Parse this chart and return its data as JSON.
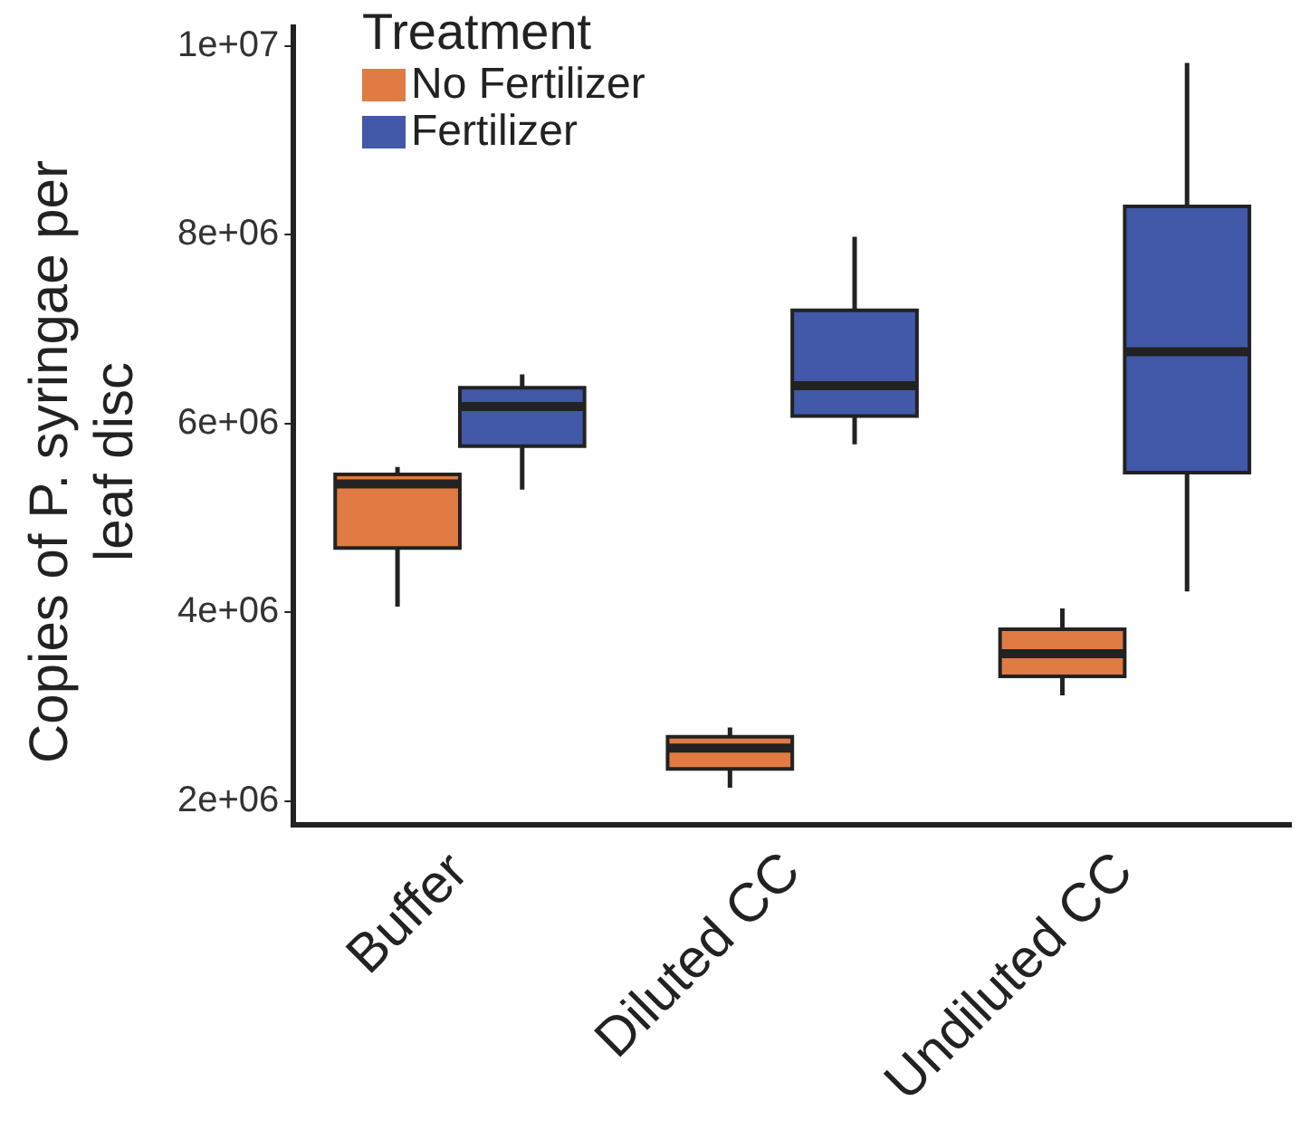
{
  "chart_data": {
    "type": "box",
    "ylabel": "Copies of P. syringae per leaf disc",
    "legend_title": "Treatment",
    "legend": "top left",
    "categories": [
      "Buffer",
      "Diluted CC",
      "Undiluted CC"
    ],
    "ylim": [
      1750000,
      10200000
    ],
    "yticks": [
      {
        "value": 2000000,
        "label": "2e+06"
      },
      {
        "value": 4000000,
        "label": "4e+06"
      },
      {
        "value": 6000000,
        "label": "6e+06"
      },
      {
        "value": 8000000,
        "label": "8e+06"
      },
      {
        "value": 10000000,
        "label": "1e+07"
      }
    ],
    "series": [
      {
        "name": "No Fertilizer",
        "color": "#e07b43",
        "boxes": [
          {
            "low": 4060000,
            "q1": 4680000,
            "median": 5360000,
            "q3": 5460000,
            "high": 5540000
          },
          {
            "low": 2140000,
            "q1": 2340000,
            "median": 2560000,
            "q3": 2680000,
            "high": 2780000
          },
          {
            "low": 3120000,
            "q1": 3320000,
            "median": 3560000,
            "q3": 3820000,
            "high": 4040000
          }
        ]
      },
      {
        "name": "Fertilizer",
        "color": "#4159a8",
        "boxes": [
          {
            "low": 5300000,
            "q1": 5760000,
            "median": 6180000,
            "q3": 6380000,
            "high": 6520000
          },
          {
            "low": 5780000,
            "q1": 6080000,
            "median": 6400000,
            "q3": 7200000,
            "high": 7980000
          },
          {
            "low": 4220000,
            "q1": 5480000,
            "median": 6760000,
            "q3": 8300000,
            "high": 9820000
          }
        ]
      }
    ]
  }
}
